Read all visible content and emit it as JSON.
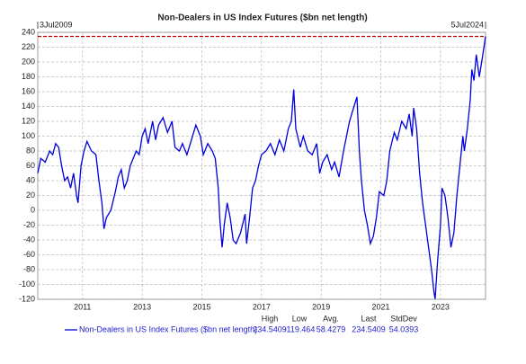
{
  "chart_data": {
    "type": "line",
    "title": "Non-Dealers in US Index Futures ($bn net length)",
    "range_labels": [
      "3Jul2009",
      "5Jul2024"
    ],
    "x": [
      2009.5,
      2009.6,
      2009.75,
      2009.9,
      2010.0,
      2010.1,
      2010.2,
      2010.3,
      2010.4,
      2010.5,
      2010.6,
      2010.7,
      2010.8,
      2010.85,
      2010.95,
      2011.05,
      2011.15,
      2011.3,
      2011.45,
      2011.55,
      2011.65,
      2011.72,
      2011.8,
      2011.95,
      2012.1,
      2012.2,
      2012.3,
      2012.4,
      2012.5,
      2012.6,
      2012.7,
      2012.8,
      2012.9,
      2013.0,
      2013.1,
      2013.2,
      2013.35,
      2013.45,
      2013.55,
      2013.7,
      2013.85,
      2014.0,
      2014.1,
      2014.25,
      2014.35,
      2014.5,
      2014.65,
      2014.8,
      2014.95,
      2015.05,
      2015.2,
      2015.35,
      2015.45,
      2015.55,
      2015.6,
      2015.68,
      2015.75,
      2015.85,
      2015.95,
      2016.05,
      2016.15,
      2016.3,
      2016.45,
      2016.5,
      2016.6,
      2016.7,
      2016.8,
      2016.9,
      2017.0,
      2017.15,
      2017.3,
      2017.45,
      2017.6,
      2017.75,
      2017.9,
      2018.0,
      2018.08,
      2018.15,
      2018.3,
      2018.4,
      2018.55,
      2018.7,
      2018.85,
      2018.95,
      2019.05,
      2019.2,
      2019.35,
      2019.45,
      2019.6,
      2019.75,
      2019.85,
      2019.95,
      2020.1,
      2020.2,
      2020.28,
      2020.35,
      2020.45,
      2020.55,
      2020.65,
      2020.75,
      2020.85,
      2020.95,
      2021.1,
      2021.2,
      2021.3,
      2021.45,
      2021.55,
      2021.7,
      2021.85,
      2021.95,
      2022.05,
      2022.1,
      2022.2,
      2022.3,
      2022.4,
      2022.5,
      2022.6,
      2022.7,
      2022.78,
      2022.82,
      2022.9,
      2023.0,
      2023.05,
      2023.15,
      2023.25,
      2023.35,
      2023.45,
      2023.55,
      2023.65,
      2023.75,
      2023.8,
      2023.9,
      2024.0,
      2024.05,
      2024.12,
      2024.2,
      2024.3,
      2024.4,
      2024.51
    ],
    "series": [
      {
        "name": "Non-Dealers in US Index Futures ($bn net length)",
        "color": "#0000dd",
        "values": [
          50,
          70,
          65,
          80,
          75,
          90,
          85,
          60,
          40,
          45,
          30,
          50,
          20,
          10,
          60,
          80,
          93,
          80,
          75,
          40,
          10,
          -25,
          -10,
          0,
          25,
          45,
          55,
          30,
          40,
          60,
          70,
          80,
          75,
          100,
          110,
          90,
          120,
          95,
          115,
          125,
          105,
          120,
          85,
          80,
          90,
          75,
          95,
          115,
          100,
          75,
          90,
          80,
          70,
          30,
          -10,
          -50,
          -20,
          10,
          -10,
          -40,
          -45,
          -30,
          -5,
          -45,
          -10,
          30,
          40,
          60,
          75,
          80,
          90,
          75,
          95,
          80,
          110,
          120,
          163,
          110,
          85,
          100,
          80,
          75,
          90,
          50,
          65,
          75,
          55,
          65,
          45,
          80,
          100,
          120,
          140,
          153,
          80,
          40,
          0,
          -20,
          -45,
          -35,
          -10,
          25,
          20,
          40,
          80,
          105,
          95,
          120,
          110,
          130,
          100,
          138,
          110,
          50,
          10,
          -20,
          -50,
          -80,
          -110,
          -119.464,
          -70,
          -20,
          30,
          20,
          -10,
          -50,
          -30,
          20,
          60,
          100,
          80,
          110,
          150,
          190,
          175,
          210,
          180,
          205,
          234.5409
        ]
      }
    ],
    "reference_line": {
      "value": 234.5409,
      "color": "#c00000"
    },
    "xlim": [
      2009.5,
      2024.51
    ],
    "xticks": [
      2011,
      2013,
      2015,
      2017,
      2019,
      2021,
      2023
    ],
    "ylim": [
      -120,
      240
    ],
    "yticks": [
      -120,
      -100,
      -80,
      -60,
      -40,
      -20,
      0,
      20,
      40,
      60,
      80,
      100,
      120,
      140,
      160,
      180,
      200,
      220,
      240
    ],
    "grid": true,
    "stats": {
      "headers": [
        "High",
        "Low",
        "Avg.",
        "Last",
        "StdDev"
      ],
      "values": [
        234.5409,
        -119.464,
        58.4279,
        234.5409,
        54.0393
      ]
    }
  }
}
